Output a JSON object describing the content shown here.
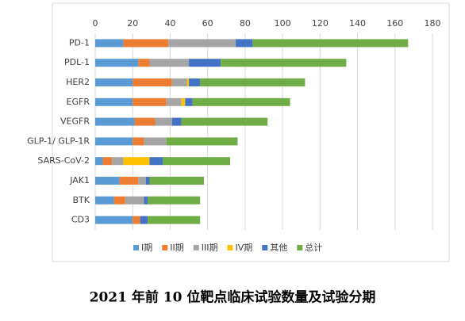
{
  "chart_data": {
    "type": "stacked_bar_horizontal",
    "title": "2021 年前 10 位靶点临床试验数量及试验分期",
    "categories": [
      "PD-1",
      "PDL-1",
      "HER2",
      "EGFR",
      "VEGFR",
      "GLP-1/ GLP-1R",
      "SARS-CoV-2",
      "JAK1",
      "BTK",
      "CD3"
    ],
    "series": [
      {
        "name": "I期",
        "color": "#5b9bd5",
        "values": [
          15,
          23,
          20,
          20,
          21,
          20,
          4,
          13,
          10,
          20
        ]
      },
      {
        "name": "II期",
        "color": "#ed7d31",
        "values": [
          24,
          6,
          21,
          18,
          11,
          6,
          5,
          10,
          6,
          4
        ]
      },
      {
        "name": "III期",
        "color": "#a5a5a5",
        "values": [
          36,
          21,
          8,
          8,
          9,
          12,
          6,
          4,
          10,
          0
        ]
      },
      {
        "name": "IV期",
        "color": "#ffc000",
        "values": [
          0,
          0,
          1,
          2,
          0,
          0,
          14,
          0,
          0,
          0
        ]
      },
      {
        "name": "其他",
        "color": "#4472c4",
        "values": [
          9,
          17,
          6,
          4,
          5,
          0,
          7,
          2,
          2,
          4
        ]
      },
      {
        "name": "总计",
        "color": "#70ad47",
        "values": [
          83,
          67,
          56,
          52,
          46,
          38,
          36,
          29,
          28,
          28
        ]
      }
    ],
    "xlim": [
      0,
      180
    ],
    "xticks": [
      0,
      20,
      40,
      60,
      80,
      100,
      120,
      140,
      160,
      180
    ],
    "grid": true
  }
}
